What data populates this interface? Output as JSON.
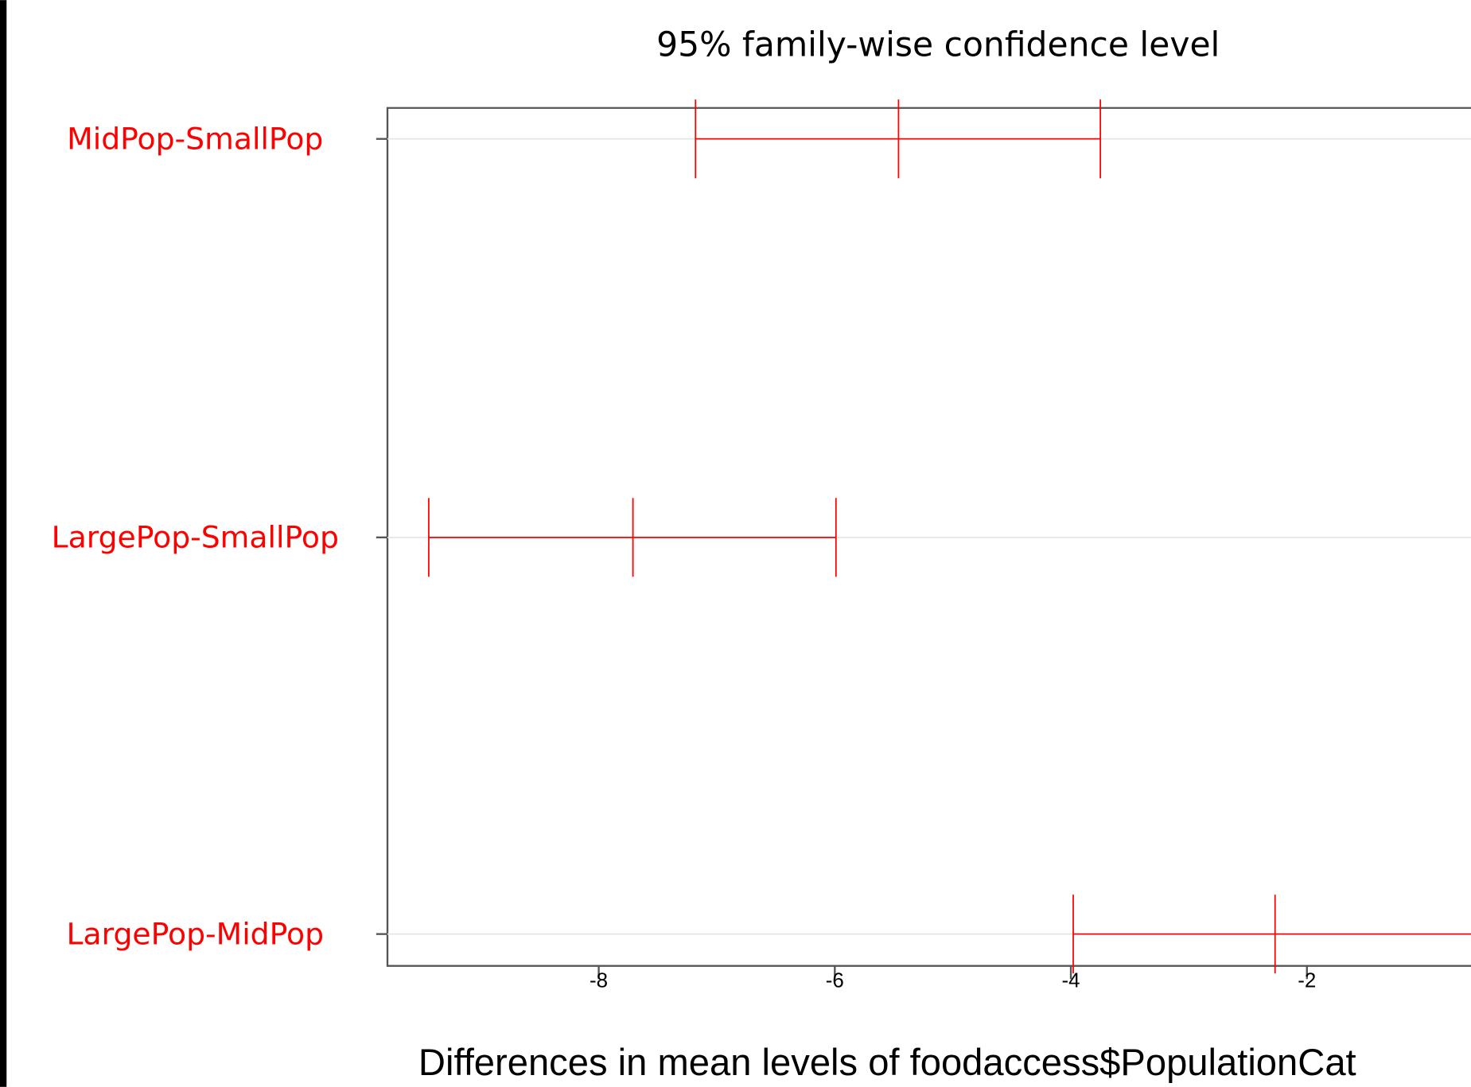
{
  "chart_data": {
    "type": "errorbar",
    "title": "95% family-wise confidence level",
    "x_label": "Differences in mean levels of foodaccess$PopulationCat",
    "categories": [
      "MidPop-SmallPop",
      "LargePop-SmallPop",
      "LargePop-MidPop"
    ],
    "lower": [
      -7.18,
      -9.44,
      -3.98
    ],
    "estimate": [
      -5.46,
      -7.71,
      -2.27
    ],
    "upper": [
      -3.75,
      -5.99,
      -0.56
    ],
    "color": "#ff0000",
    "label_color": "#ff0000",
    "xlim": [
      -9.79,
      -0.61
    ],
    "xticks": [
      -8,
      -6,
      -4,
      -2
    ]
  }
}
